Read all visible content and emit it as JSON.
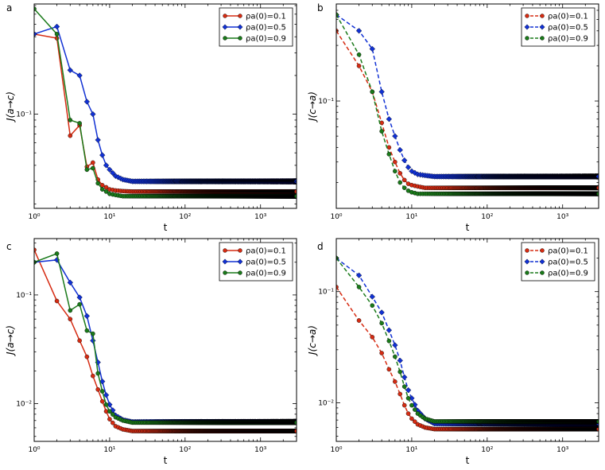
{
  "colors": {
    "red": "#d62b12",
    "blue": "#1131d4",
    "green": "#1a7a1a"
  },
  "chart_data": [
    {
      "type": "line",
      "panel": "a",
      "xlabel": "t",
      "ylabel": "J(a→c)",
      "xscale": "log",
      "yscale": "log",
      "xlim": [
        1,
        3000
      ],
      "ylim": [
        0.0185,
        0.72
      ],
      "xticks": [
        1,
        10,
        100,
        1000
      ],
      "xticklabels": [
        "10⁰",
        "10¹",
        "10²",
        "10³"
      ],
      "yticks": [
        0.1
      ],
      "yticklabels": [
        "10⁻¹"
      ],
      "linestyle": "solid",
      "legend": {
        "position": "top-right",
        "labels": [
          "ρa(0)=0.1",
          "ρa(0)=0.5",
          "ρa(0)=0.9"
        ]
      },
      "series": [
        {
          "name": "ρa(0)=0.1",
          "color": "red",
          "marker": "circle",
          "t": [
            1,
            2,
            3,
            4,
            5,
            6,
            7,
            8,
            9,
            10,
            12,
            15,
            20,
            3000
          ],
          "values": [
            0.42,
            0.39,
            0.068,
            0.082,
            0.039,
            0.042,
            0.031,
            0.028,
            0.027,
            0.026,
            0.0255,
            0.0252,
            0.025,
            0.025
          ]
        },
        {
          "name": "ρa(0)=0.5",
          "color": "blue",
          "marker": "diamond",
          "t": [
            1,
            2,
            3,
            4,
            5,
            6,
            7,
            8,
            9,
            10,
            12,
            15,
            20,
            3000
          ],
          "values": [
            0.42,
            0.48,
            0.22,
            0.2,
            0.125,
            0.1,
            0.063,
            0.048,
            0.04,
            0.037,
            0.033,
            0.031,
            0.03,
            0.03
          ]
        },
        {
          "name": "ρa(0)=0.9",
          "color": "green",
          "marker": "circle",
          "t": [
            1,
            2,
            3,
            4,
            5,
            6,
            7,
            8,
            9,
            10,
            12,
            15,
            20,
            3000
          ],
          "values": [
            0.66,
            0.42,
            0.09,
            0.085,
            0.037,
            0.038,
            0.029,
            0.026,
            0.025,
            0.024,
            0.0235,
            0.023,
            0.023,
            0.023
          ]
        }
      ]
    },
    {
      "type": "line",
      "panel": "b",
      "xlabel": "t",
      "ylabel": "J(c→a)",
      "xscale": "log",
      "yscale": "log",
      "xlim": [
        1,
        3000
      ],
      "ylim": [
        0.012,
        0.68
      ],
      "xticks": [
        1,
        10,
        100,
        1000
      ],
      "xticklabels": [
        "10⁰",
        "10¹",
        "10²",
        "10³"
      ],
      "yticks": [
        0.1
      ],
      "yticklabels": [
        "10⁻¹"
      ],
      "linestyle": "dashed",
      "legend": {
        "position": "top-right",
        "labels": [
          "ρa(0)=0.1",
          "ρa(0)=0.5",
          "ρa(0)=0.9"
        ]
      },
      "series": [
        {
          "name": "ρa(0)=0.1",
          "color": "red",
          "marker": "circle",
          "t": [
            1,
            2,
            3,
            4,
            5,
            6,
            7,
            8,
            9,
            10,
            12,
            15,
            20,
            3000
          ],
          "values": [
            0.4,
            0.2,
            0.12,
            0.065,
            0.04,
            0.03,
            0.024,
            0.021,
            0.0195,
            0.019,
            0.0185,
            0.018,
            0.018,
            0.018
          ]
        },
        {
          "name": "ρa(0)=0.5",
          "color": "blue",
          "marker": "diamond",
          "t": [
            1,
            2,
            3,
            4,
            5,
            6,
            7,
            8,
            9,
            10,
            12,
            15,
            20,
            3000
          ],
          "values": [
            0.55,
            0.4,
            0.28,
            0.12,
            0.07,
            0.05,
            0.038,
            0.031,
            0.027,
            0.025,
            0.0235,
            0.023,
            0.0225,
            0.0225
          ]
        },
        {
          "name": "ρa(0)=0.9",
          "color": "green",
          "marker": "circle",
          "t": [
            1,
            2,
            3,
            4,
            5,
            6,
            7,
            8,
            9,
            10,
            12,
            15,
            20,
            3000
          ],
          "values": [
            0.55,
            0.25,
            0.12,
            0.055,
            0.035,
            0.025,
            0.02,
            0.018,
            0.017,
            0.0165,
            0.016,
            0.016,
            0.016,
            0.016
          ]
        }
      ]
    },
    {
      "type": "line",
      "panel": "c",
      "xlabel": "t",
      "ylabel": "J(a→c)",
      "xscale": "log",
      "yscale": "log",
      "xlim": [
        1,
        3000
      ],
      "ylim": [
        0.0045,
        0.33
      ],
      "xticks": [
        1,
        10,
        100,
        1000
      ],
      "xticklabels": [
        "10⁰",
        "10¹",
        "10²",
        "10³"
      ],
      "yticks": [
        0.01,
        0.1
      ],
      "yticklabels": [
        "10⁻²",
        "10⁻¹"
      ],
      "linestyle": "solid",
      "legend": {
        "position": "top-right",
        "labels": [
          "ρa(0)=0.1",
          "ρa(0)=0.5",
          "ρa(0)=0.9"
        ]
      },
      "series": [
        {
          "name": "ρa(0)=0.1",
          "color": "red",
          "marker": "circle",
          "t": [
            1,
            2,
            3,
            4,
            5,
            6,
            7,
            8,
            9,
            10,
            12,
            15,
            20,
            3000
          ],
          "values": [
            0.26,
            0.088,
            0.06,
            0.038,
            0.027,
            0.018,
            0.0135,
            0.0105,
            0.0085,
            0.0072,
            0.0062,
            0.0058,
            0.0056,
            0.0056
          ]
        },
        {
          "name": "ρa(0)=0.5",
          "color": "blue",
          "marker": "diamond",
          "t": [
            1,
            2,
            3,
            4,
            5,
            6,
            7,
            8,
            9,
            10,
            12,
            15,
            20,
            3000
          ],
          "values": [
            0.2,
            0.21,
            0.13,
            0.095,
            0.064,
            0.038,
            0.024,
            0.016,
            0.012,
            0.0098,
            0.0078,
            0.0071,
            0.0068,
            0.0068
          ]
        },
        {
          "name": "ρa(0)=0.9",
          "color": "green",
          "marker": "circle",
          "t": [
            1,
            2,
            3,
            4,
            5,
            6,
            7,
            8,
            9,
            10,
            12,
            15,
            20,
            3000
          ],
          "values": [
            0.2,
            0.24,
            0.072,
            0.082,
            0.047,
            0.044,
            0.019,
            0.013,
            0.0098,
            0.0085,
            0.0075,
            0.007,
            0.0067,
            0.0067
          ]
        }
      ]
    },
    {
      "type": "line",
      "panel": "d",
      "xlabel": "t",
      "ylabel": "J(c→a)",
      "xscale": "log",
      "yscale": "log",
      "xlim": [
        1,
        3000
      ],
      "ylim": [
        0.0045,
        0.3
      ],
      "xticks": [
        1,
        10,
        100,
        1000
      ],
      "xticklabels": [
        "10⁰",
        "10¹",
        "10²",
        "10³"
      ],
      "yticks": [
        0.01,
        0.1
      ],
      "yticklabels": [
        "10⁻²",
        "10⁻¹"
      ],
      "linestyle": "dashed",
      "legend": {
        "position": "top-right",
        "labels": [
          "ρa(0)=0.1",
          "ρa(0)=0.5",
          "ρa(0)=0.9"
        ]
      },
      "series": [
        {
          "name": "ρa(0)=0.1",
          "color": "red",
          "marker": "circle",
          "t": [
            1,
            2,
            3,
            4,
            5,
            6,
            7,
            8,
            9,
            10,
            12,
            15,
            20,
            3000
          ],
          "values": [
            0.11,
            0.055,
            0.039,
            0.028,
            0.02,
            0.0155,
            0.012,
            0.0095,
            0.008,
            0.0072,
            0.0064,
            0.006,
            0.0058,
            0.0058
          ]
        },
        {
          "name": "ρa(0)=0.5",
          "color": "blue",
          "marker": "diamond",
          "t": [
            1,
            2,
            3,
            4,
            5,
            6,
            7,
            8,
            9,
            10,
            12,
            15,
            20,
            3000
          ],
          "values": [
            0.2,
            0.14,
            0.09,
            0.065,
            0.045,
            0.033,
            0.024,
            0.017,
            0.013,
            0.011,
            0.0085,
            0.0072,
            0.0065,
            0.0065
          ]
        },
        {
          "name": "ρa(0)=0.9",
          "color": "green",
          "marker": "circle",
          "t": [
            1,
            2,
            3,
            4,
            5,
            6,
            7,
            8,
            9,
            10,
            12,
            15,
            20,
            3000
          ],
          "values": [
            0.2,
            0.11,
            0.075,
            0.052,
            0.036,
            0.026,
            0.019,
            0.014,
            0.011,
            0.0095,
            0.008,
            0.0072,
            0.0068,
            0.0068
          ]
        }
      ]
    }
  ]
}
